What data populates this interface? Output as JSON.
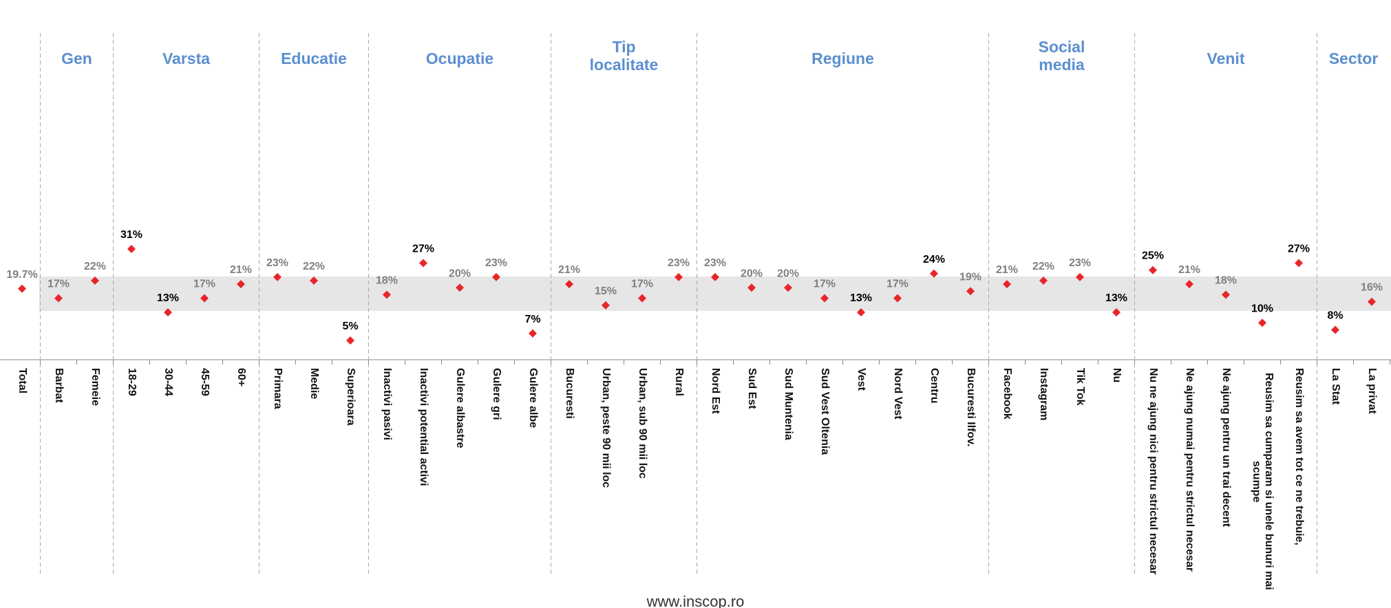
{
  "chart_data": {
    "type": "dot",
    "source": "www.inscop.ro",
    "categories": [
      "Total",
      "Barbat",
      "Femeie",
      "18-29",
      "30-44",
      "45-59",
      "60+",
      "Primara",
      "Medie",
      "Superioara",
      "Inactivi pasivi",
      "Inactivi potential activi",
      "Gulere albastre",
      "Gulere gri",
      "Gulere albe",
      "Bucuresti",
      "Urban, peste 90 mii loc",
      "Urban, sub 90 mii loc",
      "Rural",
      "Nord Est",
      "Sud Est",
      "Sud Muntenia",
      "Sud Vest Oltenia",
      "Vest",
      "Nord Vest",
      "Centru",
      "Bucuresti Ilfov.",
      "Facebook",
      "Instagram",
      "Tik Tok",
      "Nu",
      "Nu ne ajung nici pentru strictul necesar",
      "Ne ajung numai pentru strictul necesar",
      "Ne ajung pentru un trai decent",
      "Reusim sa cumparam si unele bunuri mai scumpe",
      "Reusim sa avem tot ce ne trebuie,",
      "La Stat",
      "La privat"
    ],
    "values": [
      19.7,
      17,
      22,
      31,
      13,
      17,
      21,
      23,
      22,
      5,
      18,
      27,
      20,
      23,
      7,
      21,
      15,
      17,
      23,
      23,
      20,
      20,
      17,
      13,
      17,
      24,
      19,
      21,
      22,
      23,
      13,
      25,
      21,
      18,
      10,
      27,
      8,
      16
    ],
    "value_labels": [
      "19.7%",
      "17%",
      "22%",
      "31%",
      "13%",
      "17%",
      "21%",
      "23%",
      "22%",
      "5%",
      "18%",
      "27%",
      "20%",
      "23%",
      "7%",
      "21%",
      "15%",
      "17%",
      "23%",
      "23%",
      "20%",
      "20%",
      "17%",
      "13%",
      "17%",
      "24%",
      "19%",
      "21%",
      "22%",
      "23%",
      "13%",
      "25%",
      "21%",
      "18%",
      "10%",
      "27%",
      "8%",
      "16%"
    ],
    "color": "#e8262a",
    "groups": [
      {
        "label": "Gen",
        "categories": [
          "Barbat",
          "Femeie"
        ]
      },
      {
        "label": "Varsta",
        "categories": [
          "18-29",
          "30-44",
          "45-59",
          "60+"
        ]
      },
      {
        "label": "Educatie",
        "categories": [
          "Primara",
          "Medie",
          "Superioara"
        ]
      },
      {
        "label": "Ocupatie",
        "categories": [
          "Inactivi pasivi",
          "Inactivi potential activi",
          "Gulere albastre",
          "Gulere gri",
          "Gulere albe"
        ]
      },
      {
        "label": "Tip localitate",
        "categories": [
          "Bucuresti",
          "Urban, peste 90 mii loc",
          "Urban, sub 90 mii loc",
          "Rural"
        ]
      },
      {
        "label": "Regiune",
        "categories": [
          "Nord Est",
          "Sud Est",
          "Sud Muntenia",
          "Sud Vest Oltenia",
          "Vest",
          "Nord Vest",
          "Centru",
          "Bucuresti Ilfov."
        ]
      },
      {
        "label": "Social media",
        "categories": [
          "Facebook",
          "Instagram",
          "Tik Tok",
          "Nu"
        ]
      },
      {
        "label": "Venit",
        "categories": [
          "Nu ne ajung nici pentru strictul necesar",
          "Ne ajung numai pentru strictul necesar",
          "Ne ajung pentru un trai decent",
          "Reusim sa cumparam si unele bunuri mai scumpe",
          "Reusim sa avem tot ce ne trebuie,"
        ]
      },
      {
        "label": "Sector",
        "categories": [
          "La Stat",
          "La privat"
        ]
      }
    ]
  }
}
